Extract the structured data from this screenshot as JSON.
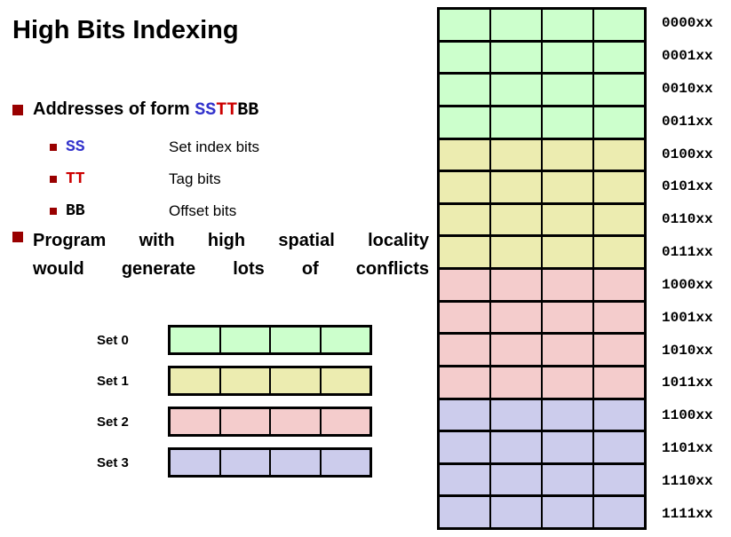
{
  "title": "High Bits Indexing",
  "colors": {
    "set_green": "#ccffcc",
    "set_yellow": "#ececb0",
    "set_pink": "#f4cccc",
    "set_purple": "#ccccec",
    "bullet_red": "#990000",
    "ss_blue": "#3333cc",
    "tt_red": "#cc0000",
    "bb_black": "#000000"
  },
  "bullet1": {
    "prefix": "Addresses of form ",
    "ss": "SS",
    "tt": "TT",
    "bb": "BB"
  },
  "sub_bullets": [
    {
      "term": "SS",
      "term_color": "ss_blue",
      "desc": "Set index bits"
    },
    {
      "term": "TT",
      "term_color": "tt_red",
      "desc": "Tag bits"
    },
    {
      "term": "BB",
      "term_color": "bb_black",
      "desc": "Offset bits"
    }
  ],
  "bullet2": {
    "line1": "Program with high spatial locality",
    "line2": "would generate lots of conflicts"
  },
  "set_diagram": {
    "columns": 4,
    "rows": [
      {
        "label": "Set 0",
        "color": "set_green"
      },
      {
        "label": "Set 1",
        "color": "set_yellow"
      },
      {
        "label": "Set 2",
        "color": "set_pink"
      },
      {
        "label": "Set 3",
        "color": "set_purple"
      }
    ]
  },
  "memory_diagram": {
    "columns": 4,
    "rows": [
      {
        "label": "0000xx",
        "color": "set_green"
      },
      {
        "label": "0001xx",
        "color": "set_green"
      },
      {
        "label": "0010xx",
        "color": "set_green"
      },
      {
        "label": "0011xx",
        "color": "set_green"
      },
      {
        "label": "0100xx",
        "color": "set_yellow"
      },
      {
        "label": "0101xx",
        "color": "set_yellow"
      },
      {
        "label": "0110xx",
        "color": "set_yellow"
      },
      {
        "label": "0111xx",
        "color": "set_yellow"
      },
      {
        "label": "1000xx",
        "color": "set_pink"
      },
      {
        "label": "1001xx",
        "color": "set_pink"
      },
      {
        "label": "1010xx",
        "color": "set_pink"
      },
      {
        "label": "1011xx",
        "color": "set_pink"
      },
      {
        "label": "1100xx",
        "color": "set_purple"
      },
      {
        "label": "1101xx",
        "color": "set_purple"
      },
      {
        "label": "1110xx",
        "color": "set_purple"
      },
      {
        "label": "1111xx",
        "color": "set_purple"
      }
    ]
  }
}
